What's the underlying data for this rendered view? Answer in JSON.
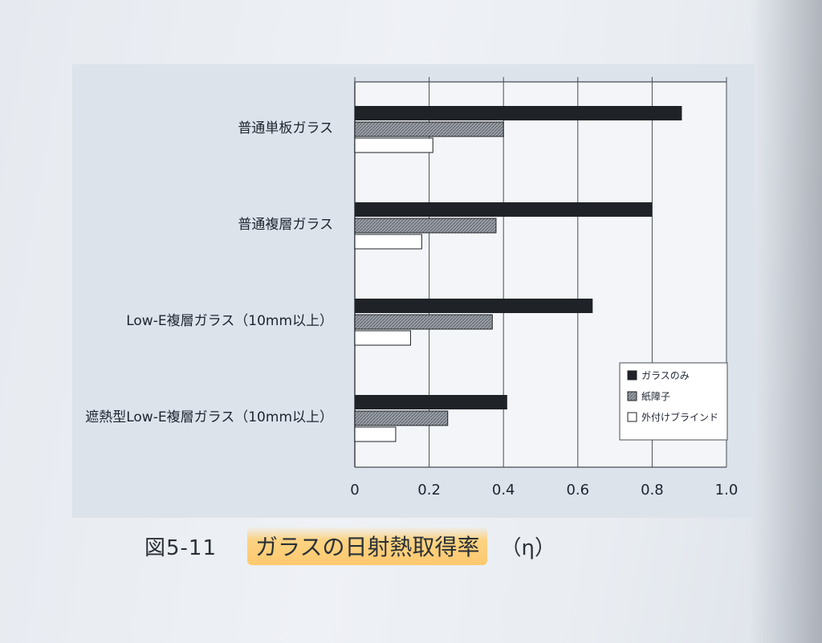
{
  "figure": {
    "number": "図5-11",
    "title": "ガラスの日射熱取得率",
    "symbol": "（η）"
  },
  "chart_data": {
    "type": "bar",
    "orientation": "horizontal",
    "categories": [
      "普通単板ガラス",
      "普通複層ガラス",
      "Low-E複層ガラス（10mm以上）",
      "遮熱型Low-E複層ガラス（10mm以上）"
    ],
    "series": [
      {
        "name": "ガラスのみ",
        "values": [
          0.88,
          0.8,
          0.64,
          0.41
        ],
        "color": "#1f2226"
      },
      {
        "name": "紙障子",
        "values": [
          0.4,
          0.38,
          0.37,
          0.25
        ],
        "color": "#8a8f96"
      },
      {
        "name": "外付けブラインド",
        "values": [
          0.21,
          0.18,
          0.15,
          0.11
        ],
        "color": "#ffffff"
      }
    ],
    "xlim": [
      0,
      1.0
    ],
    "xticks": [
      "0",
      "0.2",
      "0.4",
      "0.6",
      "0.8",
      "1.0"
    ],
    "grid": true,
    "legend_position": "bottom-right"
  }
}
